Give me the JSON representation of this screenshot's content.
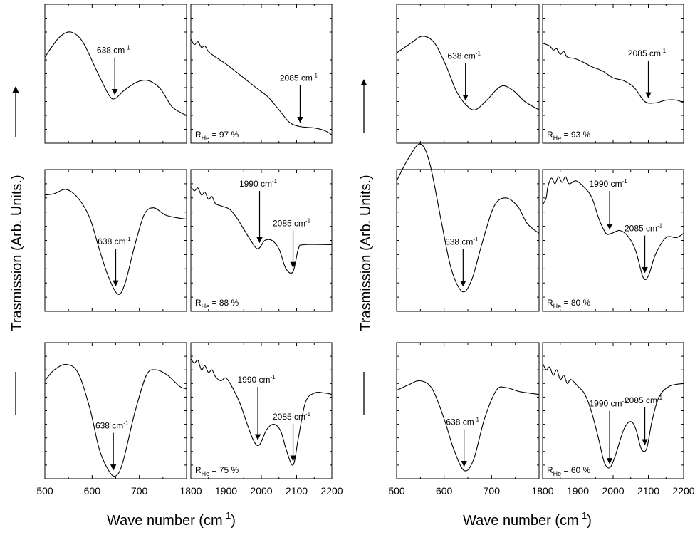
{
  "y_axis_title": "Trasmission (Arb. Units.)",
  "x_axis_title": "Wave number (cm",
  "x_axis_unit_sup": "-1",
  "x_axis_title_close": ")",
  "chart_data": {
    "type": "line",
    "xlabel": "Wave number (cm-1)",
    "ylabel": "Trasmission (Arb. Units.)",
    "y_ticks_labeled": false,
    "grid": false,
    "legend": "none",
    "x_ranges": {
      "low": {
        "xlim": [
          500,
          800
        ],
        "ticks": [
          500,
          600,
          700
        ]
      },
      "high": {
        "xlim": [
          1800,
          2200
        ],
        "ticks": [
          1800,
          1900,
          2000,
          2100,
          2200
        ]
      }
    },
    "panels": [
      {
        "rhe_label": "R",
        "rhe_sub": "He",
        "rhe_value": " = 97 %",
        "low": {
          "points": [
            [
              500,
              0.62
            ],
            [
              530,
              0.76
            ],
            [
              555,
              0.8
            ],
            [
              580,
              0.73
            ],
            [
              610,
              0.52
            ],
            [
              635,
              0.35
            ],
            [
              648,
              0.32
            ],
            [
              668,
              0.38
            ],
            [
              695,
              0.44
            ],
            [
              720,
              0.45
            ],
            [
              745,
              0.39
            ],
            [
              770,
              0.26
            ],
            [
              800,
              0.2
            ]
          ],
          "annotations": [
            {
              "label": "638 cm",
              "sup": "-1",
              "x": 648
            }
          ]
        },
        "high": {
          "points": [
            [
              1800,
              0.75
            ],
            [
              1810,
              0.71
            ],
            [
              1820,
              0.73
            ],
            [
              1830,
              0.69
            ],
            [
              1840,
              0.7
            ],
            [
              1850,
              0.66
            ],
            [
              1870,
              0.62
            ],
            [
              1900,
              0.57
            ],
            [
              1930,
              0.51
            ],
            [
              1960,
              0.45
            ],
            [
              1990,
              0.39
            ],
            [
              2020,
              0.33
            ],
            [
              2050,
              0.24
            ],
            [
              2080,
              0.15
            ],
            [
              2110,
              0.12
            ],
            [
              2150,
              0.11
            ],
            [
              2180,
              0.09
            ],
            [
              2200,
              0.06
            ]
          ],
          "annotations": [
            {
              "label": "2085 cm",
              "sup": "-1",
              "x": 2110
            }
          ]
        }
      },
      {
        "rhe_label": "R",
        "rhe_sub": "He",
        "rhe_value": " = 93 %",
        "low": {
          "points": [
            [
              500,
              0.65
            ],
            [
              530,
              0.72
            ],
            [
              555,
              0.77
            ],
            [
              580,
              0.72
            ],
            [
              605,
              0.55
            ],
            [
              625,
              0.38
            ],
            [
              645,
              0.28
            ],
            [
              665,
              0.24
            ],
            [
              690,
              0.31
            ],
            [
              720,
              0.41
            ],
            [
              745,
              0.38
            ],
            [
              770,
              0.3
            ],
            [
              800,
              0.24
            ]
          ],
          "annotations": [
            {
              "label": "638 cm",
              "sup": "-1",
              "x": 645
            }
          ]
        },
        "high": {
          "points": [
            [
              1800,
              0.72
            ],
            [
              1820,
              0.7
            ],
            [
              1830,
              0.67
            ],
            [
              1840,
              0.68
            ],
            [
              1850,
              0.64
            ],
            [
              1860,
              0.66
            ],
            [
              1870,
              0.62
            ],
            [
              1890,
              0.61
            ],
            [
              1910,
              0.59
            ],
            [
              1940,
              0.55
            ],
            [
              1970,
              0.52
            ],
            [
              2000,
              0.47
            ],
            [
              2030,
              0.45
            ],
            [
              2060,
              0.4
            ],
            [
              2090,
              0.3
            ],
            [
              2120,
              0.29
            ],
            [
              2150,
              0.31
            ],
            [
              2180,
              0.31
            ],
            [
              2200,
              0.29
            ]
          ],
          "annotations": [
            {
              "label": "2085 cm",
              "sup": "-1",
              "x": 2100
            }
          ]
        }
      },
      {
        "rhe_label": "R",
        "rhe_sub": "He",
        "rhe_value": " = 88 %",
        "low": {
          "points": [
            [
              500,
              0.82
            ],
            [
              520,
              0.83
            ],
            [
              545,
              0.86
            ],
            [
              570,
              0.8
            ],
            [
              595,
              0.66
            ],
            [
              615,
              0.44
            ],
            [
              635,
              0.24
            ],
            [
              655,
              0.12
            ],
            [
              670,
              0.2
            ],
            [
              690,
              0.46
            ],
            [
              710,
              0.68
            ],
            [
              730,
              0.73
            ],
            [
              755,
              0.68
            ],
            [
              780,
              0.66
            ],
            [
              800,
              0.65
            ]
          ],
          "annotations": [
            {
              "label": "638 cm",
              "sup": "-1",
              "x": 650
            }
          ]
        },
        "high": {
          "points": [
            [
              1800,
              0.88
            ],
            [
              1810,
              0.85
            ],
            [
              1820,
              0.87
            ],
            [
              1830,
              0.82
            ],
            [
              1840,
              0.84
            ],
            [
              1850,
              0.79
            ],
            [
              1860,
              0.81
            ],
            [
              1870,
              0.76
            ],
            [
              1890,
              0.74
            ],
            [
              1910,
              0.72
            ],
            [
              1930,
              0.66
            ],
            [
              1950,
              0.58
            ],
            [
              1970,
              0.5
            ],
            [
              1990,
              0.44
            ],
            [
              2010,
              0.5
            ],
            [
              2030,
              0.5
            ],
            [
              2050,
              0.44
            ],
            [
              2070,
              0.3
            ],
            [
              2090,
              0.28
            ],
            [
              2105,
              0.44
            ],
            [
              2120,
              0.47
            ],
            [
              2200,
              0.47
            ]
          ],
          "annotations": [
            {
              "label": "1990 cm",
              "sup": "-1",
              "x": 1995
            },
            {
              "label": "2085 cm",
              "sup": "-1",
              "x": 2090
            }
          ]
        }
      },
      {
        "rhe_label": "R",
        "rhe_sub": "He",
        "rhe_value": " = 80 %",
        "low": {
          "points": [
            [
              500,
              0.92
            ],
            [
              525,
              1.08
            ],
            [
              550,
              1.18
            ],
            [
              570,
              1.04
            ],
            [
              595,
              0.62
            ],
            [
              615,
              0.3
            ],
            [
              638,
              0.14
            ],
            [
              658,
              0.22
            ],
            [
              680,
              0.48
            ],
            [
              705,
              0.74
            ],
            [
              730,
              0.8
            ],
            [
              755,
              0.74
            ],
            [
              775,
              0.62
            ],
            [
              800,
              0.55
            ]
          ],
          "annotations": [
            {
              "label": "638 cm",
              "sup": "-1",
              "x": 640
            }
          ]
        },
        "high": {
          "points": [
            [
              1800,
              0.75
            ],
            [
              1810,
              0.8
            ],
            [
              1815,
              0.88
            ],
            [
              1825,
              0.94
            ],
            [
              1835,
              0.9
            ],
            [
              1845,
              0.95
            ],
            [
              1855,
              0.91
            ],
            [
              1865,
              0.95
            ],
            [
              1875,
              0.9
            ],
            [
              1895,
              0.92
            ],
            [
              1920,
              0.87
            ],
            [
              1940,
              0.8
            ],
            [
              1960,
              0.65
            ],
            [
              1980,
              0.55
            ],
            [
              1995,
              0.55
            ],
            [
              2020,
              0.57
            ],
            [
              2045,
              0.52
            ],
            [
              2065,
              0.42
            ],
            [
              2085,
              0.24
            ],
            [
              2100,
              0.25
            ],
            [
              2120,
              0.4
            ],
            [
              2150,
              0.52
            ],
            [
              2180,
              0.52
            ],
            [
              2200,
              0.55
            ]
          ],
          "annotations": [
            {
              "label": "1990 cm",
              "sup": "-1",
              "x": 1990
            },
            {
              "label": "2085 cm",
              "sup": "-1",
              "x": 2090
            }
          ]
        }
      },
      {
        "rhe_label": "R",
        "rhe_sub": "He",
        "rhe_value": " = 75 %",
        "low": {
          "points": [
            [
              500,
              0.72
            ],
            [
              520,
              0.8
            ],
            [
              545,
              0.84
            ],
            [
              570,
              0.78
            ],
            [
              595,
              0.52
            ],
            [
              615,
              0.22
            ],
            [
              635,
              0.06
            ],
            [
              650,
              0.02
            ],
            [
              665,
              0.12
            ],
            [
              690,
              0.48
            ],
            [
              715,
              0.76
            ],
            [
              735,
              0.8
            ],
            [
              760,
              0.76
            ],
            [
              785,
              0.68
            ],
            [
              800,
              0.66
            ]
          ],
          "annotations": [
            {
              "label": "638 cm",
              "sup": "-1",
              "x": 645
            }
          ]
        },
        "high": {
          "points": [
            [
              1800,
              0.88
            ],
            [
              1810,
              0.85
            ],
            [
              1820,
              0.87
            ],
            [
              1830,
              0.8
            ],
            [
              1840,
              0.83
            ],
            [
              1850,
              0.78
            ],
            [
              1860,
              0.8
            ],
            [
              1870,
              0.75
            ],
            [
              1885,
              0.72
            ],
            [
              1900,
              0.74
            ],
            [
              1920,
              0.66
            ],
            [
              1940,
              0.55
            ],
            [
              1960,
              0.4
            ],
            [
              1980,
              0.27
            ],
            [
              1995,
              0.25
            ],
            [
              2015,
              0.36
            ],
            [
              2035,
              0.4
            ],
            [
              2055,
              0.35
            ],
            [
              2070,
              0.22
            ],
            [
              2090,
              0.1
            ],
            [
              2105,
              0.3
            ],
            [
              2125,
              0.56
            ],
            [
              2150,
              0.63
            ],
            [
              2180,
              0.63
            ],
            [
              2200,
              0.62
            ]
          ],
          "annotations": [
            {
              "label": "1990 cm",
              "sup": "-1",
              "x": 1990
            },
            {
              "label": "2085 cm",
              "sup": "-1",
              "x": 2090
            }
          ]
        }
      },
      {
        "rhe_label": "R",
        "rhe_sub": "He",
        "rhe_value": " = 60 %",
        "low": {
          "points": [
            [
              500,
              0.65
            ],
            [
              525,
              0.69
            ],
            [
              550,
              0.72
            ],
            [
              575,
              0.66
            ],
            [
              600,
              0.44
            ],
            [
              620,
              0.22
            ],
            [
              642,
              0.06
            ],
            [
              662,
              0.14
            ],
            [
              685,
              0.44
            ],
            [
              710,
              0.65
            ],
            [
              730,
              0.67
            ],
            [
              760,
              0.64
            ],
            [
              800,
              0.62
            ]
          ],
          "annotations": [
            {
              "label": "638 cm",
              "sup": "-1",
              "x": 642
            }
          ]
        },
        "high": {
          "points": [
            [
              1800,
              0.85
            ],
            [
              1810,
              0.8
            ],
            [
              1820,
              0.82
            ],
            [
              1830,
              0.76
            ],
            [
              1840,
              0.8
            ],
            [
              1850,
              0.73
            ],
            [
              1860,
              0.76
            ],
            [
              1870,
              0.7
            ],
            [
              1880,
              0.73
            ],
            [
              1900,
              0.68
            ],
            [
              1920,
              0.62
            ],
            [
              1940,
              0.48
            ],
            [
              1960,
              0.28
            ],
            [
              1975,
              0.12
            ],
            [
              1990,
              0.08
            ],
            [
              2005,
              0.16
            ],
            [
              2030,
              0.36
            ],
            [
              2050,
              0.42
            ],
            [
              2065,
              0.36
            ],
            [
              2080,
              0.22
            ],
            [
              2095,
              0.22
            ],
            [
              2110,
              0.42
            ],
            [
              2130,
              0.6
            ],
            [
              2160,
              0.68
            ],
            [
              2200,
              0.7
            ]
          ],
          "annotations": [
            {
              "label": "1990 cm",
              "sup": "-1",
              "x": 1990
            },
            {
              "label": "2085 cm",
              "sup": "-1",
              "x": 2090
            }
          ]
        }
      }
    ]
  }
}
